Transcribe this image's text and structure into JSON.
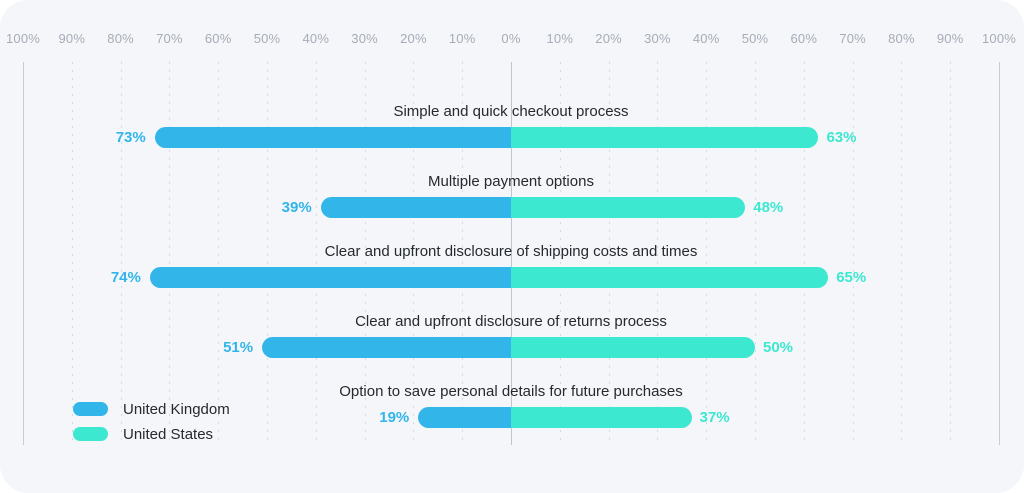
{
  "chart_data": {
    "type": "bar",
    "variant": "diverging-horizontal",
    "title": "",
    "categories": [
      "Simple and quick checkout process",
      "Multiple payment options",
      "Clear and upfront disclosure of shipping costs and times",
      "Clear and upfront disclosure of returns process",
      "Option to save personal details for future purchases"
    ],
    "series": [
      {
        "name": "United Kingdom",
        "side": "left",
        "color": "#32B5E9",
        "values": [
          73,
          39,
          74,
          51,
          19
        ]
      },
      {
        "name": "United States",
        "side": "right",
        "color": "#3DE8D1",
        "values": [
          63,
          48,
          65,
          50,
          37
        ]
      }
    ],
    "value_suffix": "%",
    "axis": {
      "tick_labels": [
        "100%",
        "90%",
        "80%",
        "70%",
        "60%",
        "50%",
        "40%",
        "30%",
        "20%",
        "10%",
        "0%",
        "10%",
        "20%",
        "30%",
        "40%",
        "50%",
        "60%",
        "70%",
        "80%",
        "90%",
        "100%"
      ],
      "range_percent": 100,
      "grid": true,
      "grid_style": "dotted vertical every 10%, solid at 0% and both 100% extremes"
    },
    "legend_position": "bottom-left"
  },
  "colors": {
    "card_background": "#F4F6FA",
    "uk_blue": "#32B5E9",
    "us_teal": "#3DE8D1",
    "tick_gray": "#A6ACB6",
    "category_text": "#26292E"
  }
}
